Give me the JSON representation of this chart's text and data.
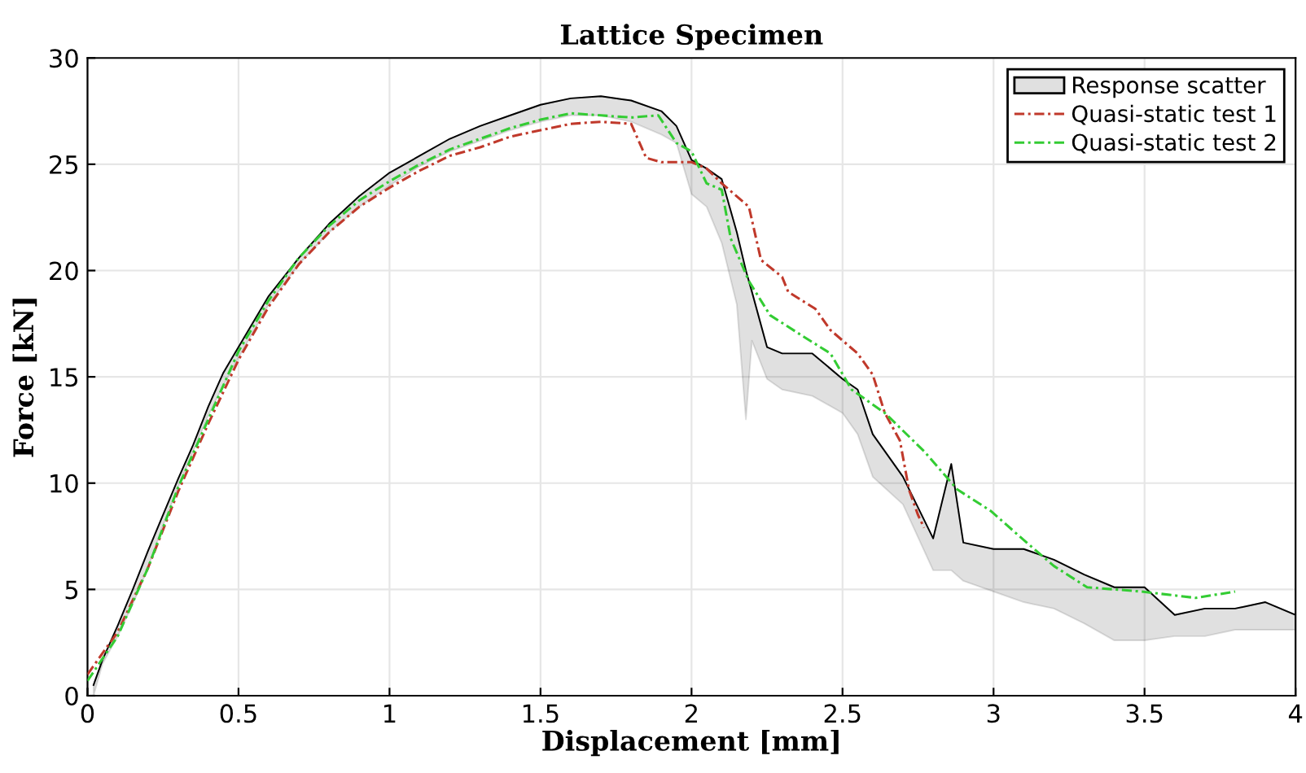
{
  "chart_data": {
    "type": "line",
    "title": "Lattice Specimen",
    "xlabel": "Displacement [mm]",
    "ylabel": "Force [kN]",
    "xlim": [
      0,
      4
    ],
    "xticks": [
      0,
      0.5,
      1,
      1.5,
      2,
      2.5,
      3,
      3.5,
      4
    ],
    "ylim": [
      0,
      30
    ],
    "yticks": [
      0,
      5,
      10,
      15,
      20,
      25,
      30
    ],
    "grid": true,
    "legend": "top right",
    "series": [
      {
        "name": "Response scatter",
        "type": "line",
        "color": "#000000",
        "x": [
          0.02,
          0.05,
          0.1,
          0.15,
          0.2,
          0.25,
          0.3,
          0.35,
          0.4,
          0.45,
          0.5,
          0.6,
          0.7,
          0.8,
          0.9,
          1.0,
          1.1,
          1.2,
          1.3,
          1.4,
          1.5,
          1.6,
          1.7,
          1.8,
          1.9,
          1.95,
          2.0,
          2.05,
          2.1,
          2.15,
          2.18,
          2.2,
          2.25,
          2.3,
          2.4,
          2.5,
          2.55,
          2.6,
          2.7,
          2.8,
          2.86,
          2.9,
          3.0,
          3.1,
          3.2,
          3.3,
          3.4,
          3.5,
          3.6,
          3.7,
          3.8,
          3.9,
          4.0
        ],
        "lower": [
          0,
          1.5,
          2.8,
          4.3,
          6.0,
          8.0,
          9.8,
          11.5,
          13.2,
          14.6,
          15.9,
          18.4,
          20.3,
          21.8,
          23.0,
          24.0,
          24.9,
          25.6,
          26.1,
          26.6,
          27.0,
          27.3,
          27.3,
          27.0,
          26.4,
          26.0,
          23.6,
          23.0,
          21.3,
          18.4,
          13.0,
          16.7,
          14.9,
          14.4,
          14.1,
          13.3,
          12.3,
          10.3,
          9.0,
          5.9,
          5.9,
          5.4,
          4.9,
          4.4,
          4.1,
          3.4,
          2.6,
          2.6,
          2.8,
          2.8,
          3.1,
          3.1,
          3.1
        ],
        "upper": [
          0.5,
          1.7,
          3.3,
          5.0,
          6.8,
          8.5,
          10.2,
          11.8,
          13.6,
          15.2,
          16.4,
          18.8,
          20.6,
          22.2,
          23.5,
          24.6,
          25.4,
          26.2,
          26.8,
          27.3,
          27.8,
          28.1,
          28.2,
          28.0,
          27.5,
          26.8,
          25.2,
          24.8,
          24.3,
          21.8,
          20.0,
          19.0,
          16.4,
          16.1,
          16.1,
          14.9,
          14.4,
          12.3,
          10.3,
          7.4,
          10.9,
          7.2,
          6.9,
          6.9,
          6.4,
          5.7,
          5.1,
          5.1,
          3.8,
          4.1,
          4.1,
          4.4,
          3.8
        ],
        "values": [
          0.5,
          1.7,
          3.3,
          5.0,
          6.8,
          8.5,
          10.2,
          11.8,
          13.6,
          15.2,
          16.4,
          18.8,
          20.6,
          22.2,
          23.5,
          24.6,
          25.4,
          26.2,
          26.8,
          27.3,
          27.8,
          28.1,
          28.2,
          28.0,
          27.5,
          26.8,
          25.2,
          24.8,
          24.3,
          21.8,
          20.0,
          19.0,
          16.4,
          16.1,
          16.1,
          14.9,
          14.4,
          12.3,
          10.3,
          7.4,
          10.9,
          7.2,
          6.9,
          6.9,
          6.4,
          5.7,
          5.1,
          5.1,
          3.8,
          4.1,
          4.1,
          4.4,
          3.8
        ]
      },
      {
        "name": "Quasi-static test 1",
        "color": "#c0392b",
        "line_style": "dashed",
        "x": [
          0,
          0.1,
          0.2,
          0.3,
          0.4,
          0.5,
          0.6,
          0.7,
          0.8,
          0.9,
          1.0,
          1.1,
          1.2,
          1.3,
          1.4,
          1.5,
          1.6,
          1.7,
          1.8,
          1.85,
          1.9,
          2.0,
          2.05,
          2.1,
          2.19,
          2.23,
          2.3,
          2.32,
          2.41,
          2.46,
          2.55,
          2.6,
          2.64,
          2.69,
          2.72,
          2.75,
          2.77
        ],
        "values": [
          1.0,
          3.0,
          6.0,
          9.6,
          12.8,
          15.8,
          18.3,
          20.3,
          21.8,
          23.0,
          23.9,
          24.7,
          25.4,
          25.8,
          26.3,
          26.6,
          26.9,
          27.0,
          26.9,
          25.3,
          25.1,
          25.1,
          24.8,
          24.1,
          23.0,
          20.5,
          19.7,
          19.0,
          18.2,
          17.2,
          16.1,
          15.1,
          13.3,
          12.0,
          9.7,
          8.5,
          7.9
        ]
      },
      {
        "name": "Quasi-static test 2",
        "color": "#33cc33",
        "line_style": "dashed",
        "x": [
          0,
          0.1,
          0.2,
          0.3,
          0.4,
          0.5,
          0.6,
          0.7,
          0.8,
          0.9,
          1.0,
          1.1,
          1.2,
          1.3,
          1.4,
          1.5,
          1.6,
          1.7,
          1.8,
          1.89,
          1.95,
          2.0,
          2.05,
          2.1,
          2.13,
          2.19,
          2.26,
          2.37,
          2.46,
          2.53,
          2.64,
          2.77,
          2.88,
          2.99,
          3.11,
          3.2,
          3.31,
          3.49,
          3.67,
          3.8
        ],
        "values": [
          0.7,
          2.8,
          6.0,
          9.8,
          13.0,
          16.2,
          18.6,
          20.6,
          22.1,
          23.3,
          24.2,
          25.0,
          25.7,
          26.2,
          26.7,
          27.1,
          27.4,
          27.3,
          27.2,
          27.3,
          26.0,
          25.6,
          24.1,
          23.8,
          21.5,
          19.5,
          17.9,
          16.9,
          16.1,
          14.4,
          13.3,
          11.5,
          9.7,
          8.7,
          7.2,
          6.1,
          5.1,
          4.9,
          4.6,
          4.9
        ]
      }
    ]
  }
}
